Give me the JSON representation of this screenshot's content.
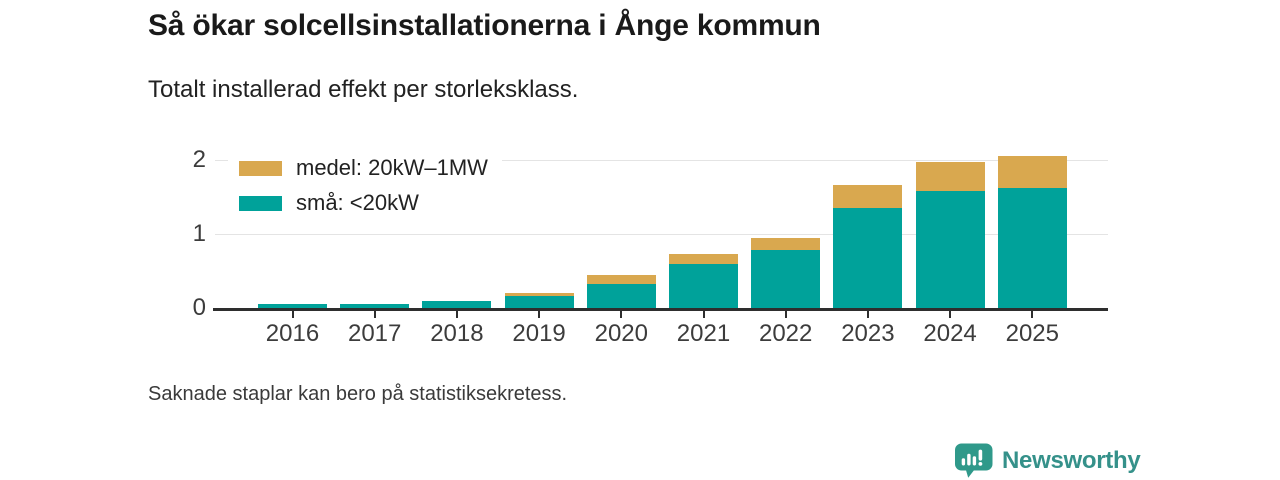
{
  "header": {
    "title": "Så ökar solcellsinstallationerna i Ånge kommun",
    "subtitle": "Totalt installerad effekt per storleksklass."
  },
  "chart_data": {
    "type": "bar",
    "stacked": true,
    "title": "Så ökar solcellsinstallationerna i Ånge kommun",
    "subtitle": "Totalt installerad effekt per storleksklass.",
    "categories": [
      "2016",
      "2017",
      "2018",
      "2019",
      "2020",
      "2021",
      "2022",
      "2023",
      "2024",
      "2025"
    ],
    "series": [
      {
        "name": "medel: 20kW–1MW",
        "key": "medel",
        "color": "#d9a84f",
        "values": [
          0,
          0,
          0,
          0.04,
          0.13,
          0.14,
          0.17,
          0.31,
          0.39,
          0.44
        ]
      },
      {
        "name": "små: <20kW",
        "key": "sma",
        "color": "#00a29a",
        "values": [
          0.05,
          0.05,
          0.1,
          0.17,
          0.32,
          0.59,
          0.78,
          1.35,
          1.58,
          1.62
        ]
      }
    ],
    "xlabel": "",
    "ylabel": "",
    "yticks": [
      0,
      1,
      2
    ],
    "ylim": [
      0,
      2.2
    ],
    "grid": true,
    "legend_position": "top-left"
  },
  "footer": {
    "note": "Saknade staplar kan bero på statistiksekretess."
  },
  "branding": {
    "logo_text": "Newsworthy",
    "logo_color": "#2f998a",
    "text_color": "#35918a"
  },
  "colors": {
    "sma_teal": "#00a29a",
    "medel_gold": "#d9a84f",
    "axis": "#2e2e2e",
    "gridline": "#e4e4e4",
    "label": "#3c3c3c"
  }
}
